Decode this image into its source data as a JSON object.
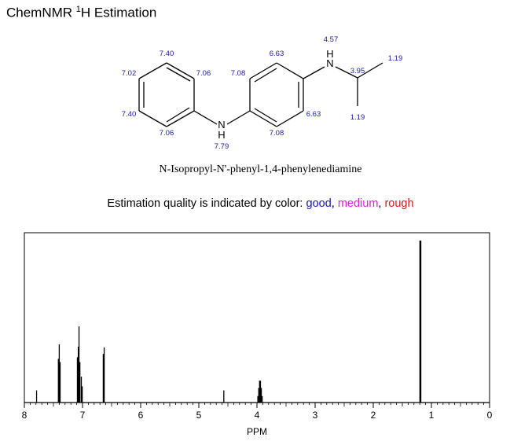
{
  "header": {
    "title_prefix": "ChemNMR ",
    "title_sup": "1",
    "title_suffix": "H Estimation"
  },
  "compound_name": "N-Isopropyl-N'-phenyl-1,4-phenylenediamine",
  "quality": {
    "prefix": "Estimation quality is indicated by color: ",
    "good": "good",
    "sep1": ", ",
    "medium": "medium",
    "sep2": ", ",
    "rough": "rough",
    "colors": {
      "good": "#1a1aa6",
      "medium": "#e31ae3",
      "rough": "#d21a1a"
    }
  },
  "structure": {
    "atoms": {
      "nh_left": "N",
      "h_left": "H",
      "nh_right": "N",
      "h_right": "H"
    },
    "shift_labels": {
      "ph_para": "7.02",
      "ph_meta_top": "7.40",
      "ph_meta_bottom": "7.40",
      "ph_ortho_top": "7.06",
      "ph_ortho_bottom": "7.06",
      "nh_left": "7.79",
      "ring2_top_left": "7.08",
      "ring2_bottom_left": "7.08",
      "ring2_top_right": "6.63",
      "ring2_bottom_right": "6.63",
      "nh_right": "4.57",
      "ch": "3.95",
      "ch3_top": "1.19",
      "ch3_bottom": "1.19"
    }
  },
  "chart_data": {
    "type": "line",
    "title": "",
    "xlabel": "PPM",
    "ylabel": "",
    "xlim": [
      8,
      0
    ],
    "x_reversed": true,
    "x_ticks": [
      "8",
      "7",
      "6",
      "5",
      "4",
      "3",
      "2",
      "1",
      "0"
    ],
    "grid": false,
    "legend": "none",
    "series": [
      {
        "peaks": [
          {
            "ppm": 7.79,
            "height": 0.075
          },
          {
            "ppm": 7.415,
            "height": 0.27
          },
          {
            "ppm": 7.4,
            "height": 0.36
          },
          {
            "ppm": 7.385,
            "height": 0.25
          },
          {
            "ppm": 7.088,
            "height": 0.28
          },
          {
            "ppm": 7.072,
            "height": 0.345
          },
          {
            "ppm": 7.06,
            "height": 0.47
          },
          {
            "ppm": 7.045,
            "height": 0.25
          },
          {
            "ppm": 7.02,
            "height": 0.16
          },
          {
            "ppm": 7.005,
            "height": 0.1
          },
          {
            "ppm": 6.643,
            "height": 0.3
          },
          {
            "ppm": 6.627,
            "height": 0.34
          },
          {
            "ppm": 4.57,
            "height": 0.075
          },
          {
            "ppm": 3.985,
            "height": 0.04
          },
          {
            "ppm": 3.97,
            "height": 0.09
          },
          {
            "ppm": 3.955,
            "height": 0.135
          },
          {
            "ppm": 3.94,
            "height": 0.135
          },
          {
            "ppm": 3.925,
            "height": 0.09
          },
          {
            "ppm": 3.91,
            "height": 0.04
          },
          {
            "ppm": 1.198,
            "height": 1.0
          },
          {
            "ppm": 1.182,
            "height": 1.0
          }
        ]
      }
    ]
  }
}
